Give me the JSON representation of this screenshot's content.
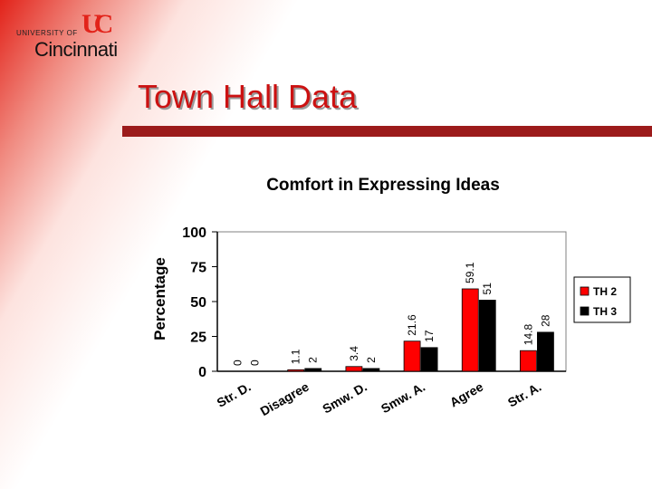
{
  "logo": {
    "institution_line": "UNIVERSITY OF",
    "city": "Cincinnati",
    "mark": "UC"
  },
  "slide": {
    "title": "Town Hall Data"
  },
  "colors": {
    "th2": "#ff0000",
    "th3": "#000000",
    "accent": "#9c1b1b"
  },
  "chart_data": {
    "type": "bar",
    "title": "Comfort in Expressing Ideas",
    "ylabel": "Percentage",
    "xlabel": "",
    "ylim": [
      0,
      100
    ],
    "yticks": [
      0,
      25,
      50,
      75,
      100
    ],
    "categories": [
      "Str. D.",
      "Disagree",
      "Smw. D.",
      "Smw. A.",
      "Agree",
      "Str. A."
    ],
    "series": [
      {
        "name": "TH 2",
        "values": [
          0,
          1.1,
          3.4,
          21.6,
          59.1,
          14.8
        ],
        "labels": [
          "0",
          "1.1",
          "3.4",
          "21.6",
          "59.1",
          "14.8"
        ]
      },
      {
        "name": "TH 3",
        "values": [
          0,
          2,
          2,
          17,
          51,
          28
        ],
        "labels": [
          "0",
          "2",
          "2",
          "17",
          "51",
          "28"
        ]
      }
    ],
    "legend_position": "right"
  }
}
